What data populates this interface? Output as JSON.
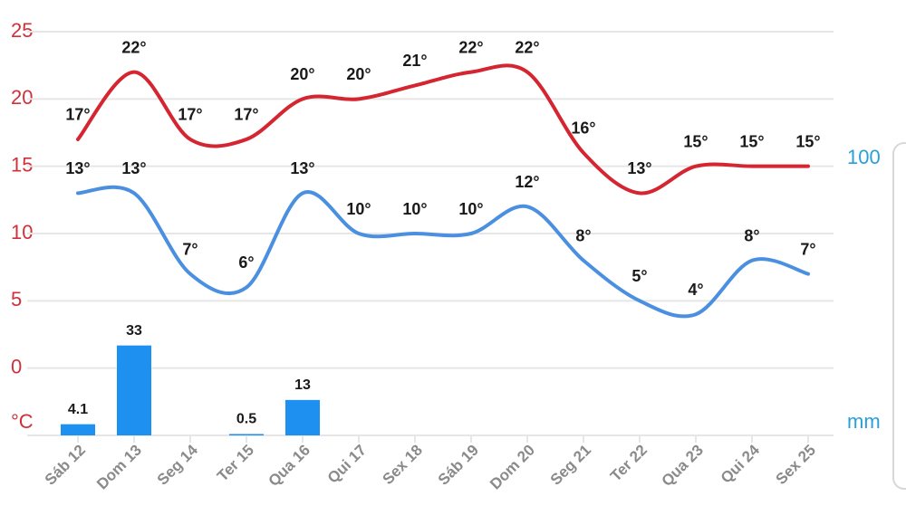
{
  "chart_data": {
    "type": "line",
    "y_label": "°C",
    "y2_label": "mm",
    "categories": [
      "Sáb 12",
      "Dom 13",
      "Seg 14",
      "Ter 15",
      "Qua 16",
      "Qui 17",
      "Sex 18",
      "Sáb 19",
      "Dom 20",
      "Seg 21",
      "Ter 22",
      "Qua 23",
      "Qui 24",
      "Sex 25"
    ],
    "ylim": [
      -5,
      25
    ],
    "yticks": [
      0,
      5,
      10,
      15,
      20,
      25
    ],
    "y2lim": [
      0,
      100
    ],
    "y2ticks": [
      100
    ],
    "grid": true,
    "series": [
      {
        "type": "line",
        "color": "#d42530",
        "values": [
          17,
          22,
          17,
          17,
          20,
          20,
          21,
          22,
          22,
          16,
          13,
          15,
          15,
          15
        ],
        "value_labels": [
          "17°",
          "22°",
          "17°",
          "17°",
          "20°",
          "20°",
          "21°",
          "22°",
          "22°",
          "16°",
          "13°",
          "15°",
          "15°",
          "15°"
        ]
      },
      {
        "type": "line",
        "color": "#4a8fe0",
        "values": [
          13,
          13,
          7,
          6,
          13,
          10,
          10,
          10,
          12,
          8,
          5,
          4,
          8,
          7
        ],
        "value_labels": [
          "13°",
          "13°",
          "7°",
          "6°",
          "13°",
          "10°",
          "10°",
          "10°",
          "12°",
          "8°",
          "5°",
          "4°",
          "8°",
          "7°"
        ]
      },
      {
        "type": "bar",
        "axis": "y2",
        "color": "#1e90f0",
        "values": [
          4.1,
          33,
          null,
          0.5,
          13,
          null,
          null,
          null,
          null,
          null,
          null,
          null,
          null,
          null
        ]
      }
    ]
  }
}
